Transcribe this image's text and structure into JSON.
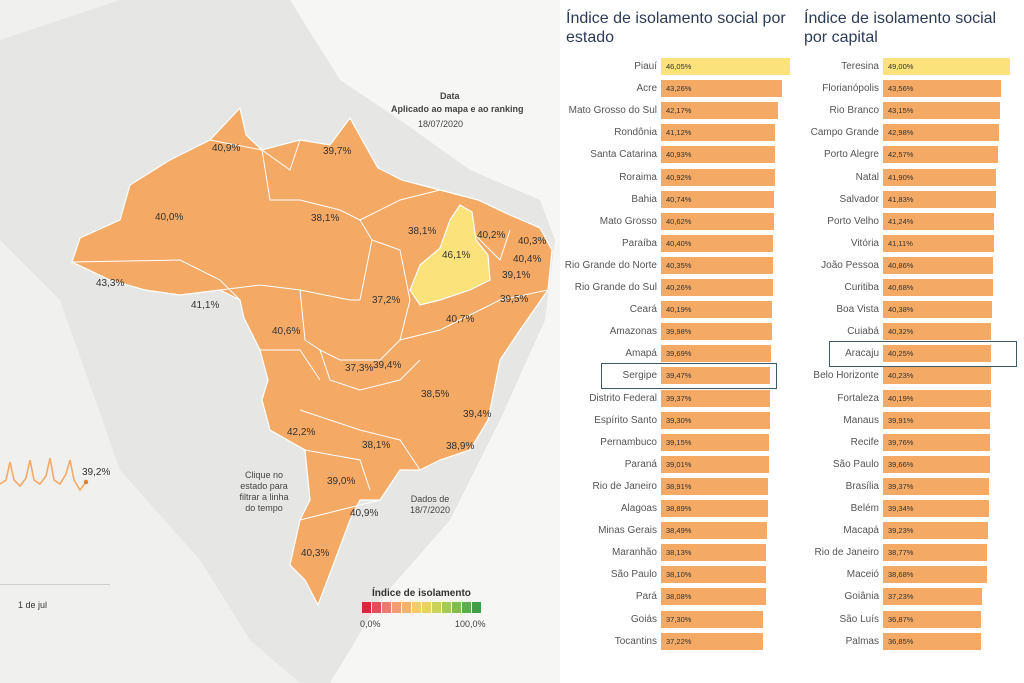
{
  "map": {
    "note_title": "Data",
    "note_subtitle": "Aplicado ao mapa e ao ranking",
    "note_date": "18/07/2020",
    "click_hint": "Clique no estado para filtrar a linha do tempo",
    "data_date": "Dados de 18/7/2020",
    "timeline_value": "39,2%",
    "timeline_axis": "1 de jul",
    "legend_title": "Índice de isolamento",
    "legend_min": "0,0%",
    "legend_max": "100,0%",
    "colors": {
      "base": "#f4a964",
      "highlight": "#fbe27a",
      "border": "#ffffff"
    },
    "legend_colors": [
      "#d7263d",
      "#e34d58",
      "#ec7a6e",
      "#f39c74",
      "#f4b36a",
      "#f6cc6a",
      "#e8d45c",
      "#c9d35a",
      "#a6ca58",
      "#7fbd52",
      "#5aaf4c",
      "#3f9e46"
    ],
    "state_labels": [
      "40,9%",
      "39,7%",
      "40,0%",
      "38,1%",
      "38,1%",
      "46,1%",
      "40,2%",
      "40,3%",
      "40,4%",
      "39,1%",
      "39,5%",
      "43,3%",
      "41,1%",
      "40,6%",
      "37,2%",
      "40,7%",
      "37,3%",
      "39,4%",
      "38,5%",
      "39,4%",
      "42,2%",
      "38,1%",
      "38,9%",
      "39,0%",
      "40,9%",
      "40,3%"
    ]
  },
  "chart_data": [
    {
      "type": "bar",
      "title": "Índice de isolamento social por estado",
      "categories": [
        "Piauí",
        "Acre",
        "Mato Grosso do Sul",
        "Rondônia",
        "Santa Catarina",
        "Roraima",
        "Bahia",
        "Mato Grosso",
        "Paraíba",
        "Rio Grande do Norte",
        "Rio Grande do Sul",
        "Ceará",
        "Amazonas",
        "Amapá",
        "Sergipe",
        "Distrito Federal",
        "Espírito Santo",
        "Pernambuco",
        "Paraná",
        "Rio de Janeiro",
        "Alagoas",
        "Minas Gerais",
        "Maranhão",
        "São Paulo",
        "Pará",
        "Goiás",
        "Tocantins"
      ],
      "values": [
        46.05,
        43.26,
        42.17,
        41.12,
        40.93,
        40.92,
        40.74,
        40.62,
        40.4,
        40.35,
        40.26,
        40.19,
        39.98,
        39.69,
        39.47,
        39.37,
        39.3,
        39.15,
        39.01,
        38.91,
        38.89,
        38.49,
        38.13,
        38.1,
        38.08,
        37.3,
        37.22
      ],
      "value_labels": [
        "46,05%",
        "43,26%",
        "42,17%",
        "41,12%",
        "40,93%",
        "40,92%",
        "40,74%",
        "40,62%",
        "40,40%",
        "40,35%",
        "40,26%",
        "40,19%",
        "39,98%",
        "39,69%",
        "39,47%",
        "39,37%",
        "39,30%",
        "39,15%",
        "39,01%",
        "38,91%",
        "38,89%",
        "38,49%",
        "38,13%",
        "38,10%",
        "38,08%",
        "37,30%",
        "37,22%"
      ],
      "highlighted": [
        "Sergipe"
      ],
      "bar_color": "#f4a964",
      "top_bar_color": "#fbe27a"
    },
    {
      "type": "bar",
      "title": "Índice de isolamento social por capital",
      "categories": [
        "Teresina",
        "Florianópolis",
        "Rio Branco",
        "Campo Grande",
        "Porto Alegre",
        "Natal",
        "Salvador",
        "Porto Velho",
        "Vitória",
        "João Pessoa",
        "Curitiba",
        "Boa Vista",
        "Cuiabá",
        "Aracaju",
        "Belo Horizonte",
        "Fortaleza",
        "Manaus",
        "Recife",
        "São Paulo",
        "Brasília",
        "Belém",
        "Macapá",
        "Rio de Janeiro",
        "Maceió",
        "Goiânia",
        "São Luís",
        "Palmas"
      ],
      "values": [
        49.0,
        43.56,
        43.15,
        42.98,
        42.57,
        41.9,
        41.83,
        41.24,
        41.11,
        40.86,
        40.68,
        40.38,
        40.32,
        40.25,
        40.23,
        40.19,
        39.91,
        39.76,
        39.66,
        39.37,
        39.34,
        39.23,
        38.77,
        38.68,
        37.23,
        36.87,
        36.85
      ],
      "value_labels": [
        "49,00%",
        "43,56%",
        "43,15%",
        "42,98%",
        "42,57%",
        "41,90%",
        "41,83%",
        "41,24%",
        "41,11%",
        "40,86%",
        "40,68%",
        "40,38%",
        "40,32%",
        "40,25%",
        "40,23%",
        "40,19%",
        "39,91%",
        "39,76%",
        "39,66%",
        "39,37%",
        "39,34%",
        "39,23%",
        "38,77%",
        "38,68%",
        "37,23%",
        "36,87%",
        "36,85%"
      ],
      "highlighted": [
        "Aracaju"
      ],
      "bar_color": "#f4a964",
      "top_bar_color": "#fbe27a"
    }
  ]
}
